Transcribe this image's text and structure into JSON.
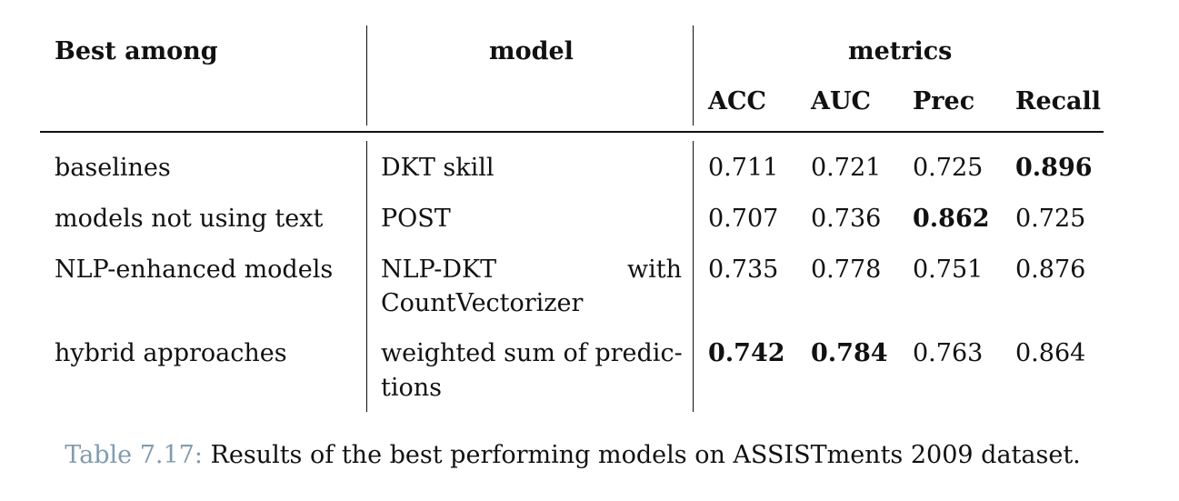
{
  "table": {
    "headers": {
      "best_among": "Best among",
      "model": "model",
      "metrics": "metrics",
      "acc": "ACC",
      "auc": "AUC",
      "prec": "Prec",
      "recall": "Recall"
    },
    "rows": [
      {
        "best_among": "baselines",
        "model_line1": "DKT skill",
        "model_line2": "",
        "acc": "0.711",
        "auc": "0.721",
        "prec": "0.725",
        "recall": "0.896"
      },
      {
        "best_among": "models not using text",
        "model_line1": "POST",
        "model_line2": "",
        "acc": "0.707",
        "auc": "0.736",
        "prec": "0.862",
        "recall": "0.725"
      },
      {
        "best_among": "NLP-enhanced models",
        "model_line1a": "NLP-DKT",
        "model_line1b": "with",
        "model_line2": "CountVectorizer",
        "acc": "0.735",
        "auc": "0.778",
        "prec": "0.751",
        "recall": "0.876"
      },
      {
        "best_among": "hybrid approaches",
        "model_line1": "weighted sum of predic-",
        "model_line2": "tions",
        "acc": "0.742",
        "auc": "0.784",
        "prec": "0.763",
        "recall": "0.864"
      }
    ]
  },
  "caption": {
    "label": "Table 7.17:",
    "text": " Results of the best performing models on ASSISTments 2009 dataset."
  }
}
